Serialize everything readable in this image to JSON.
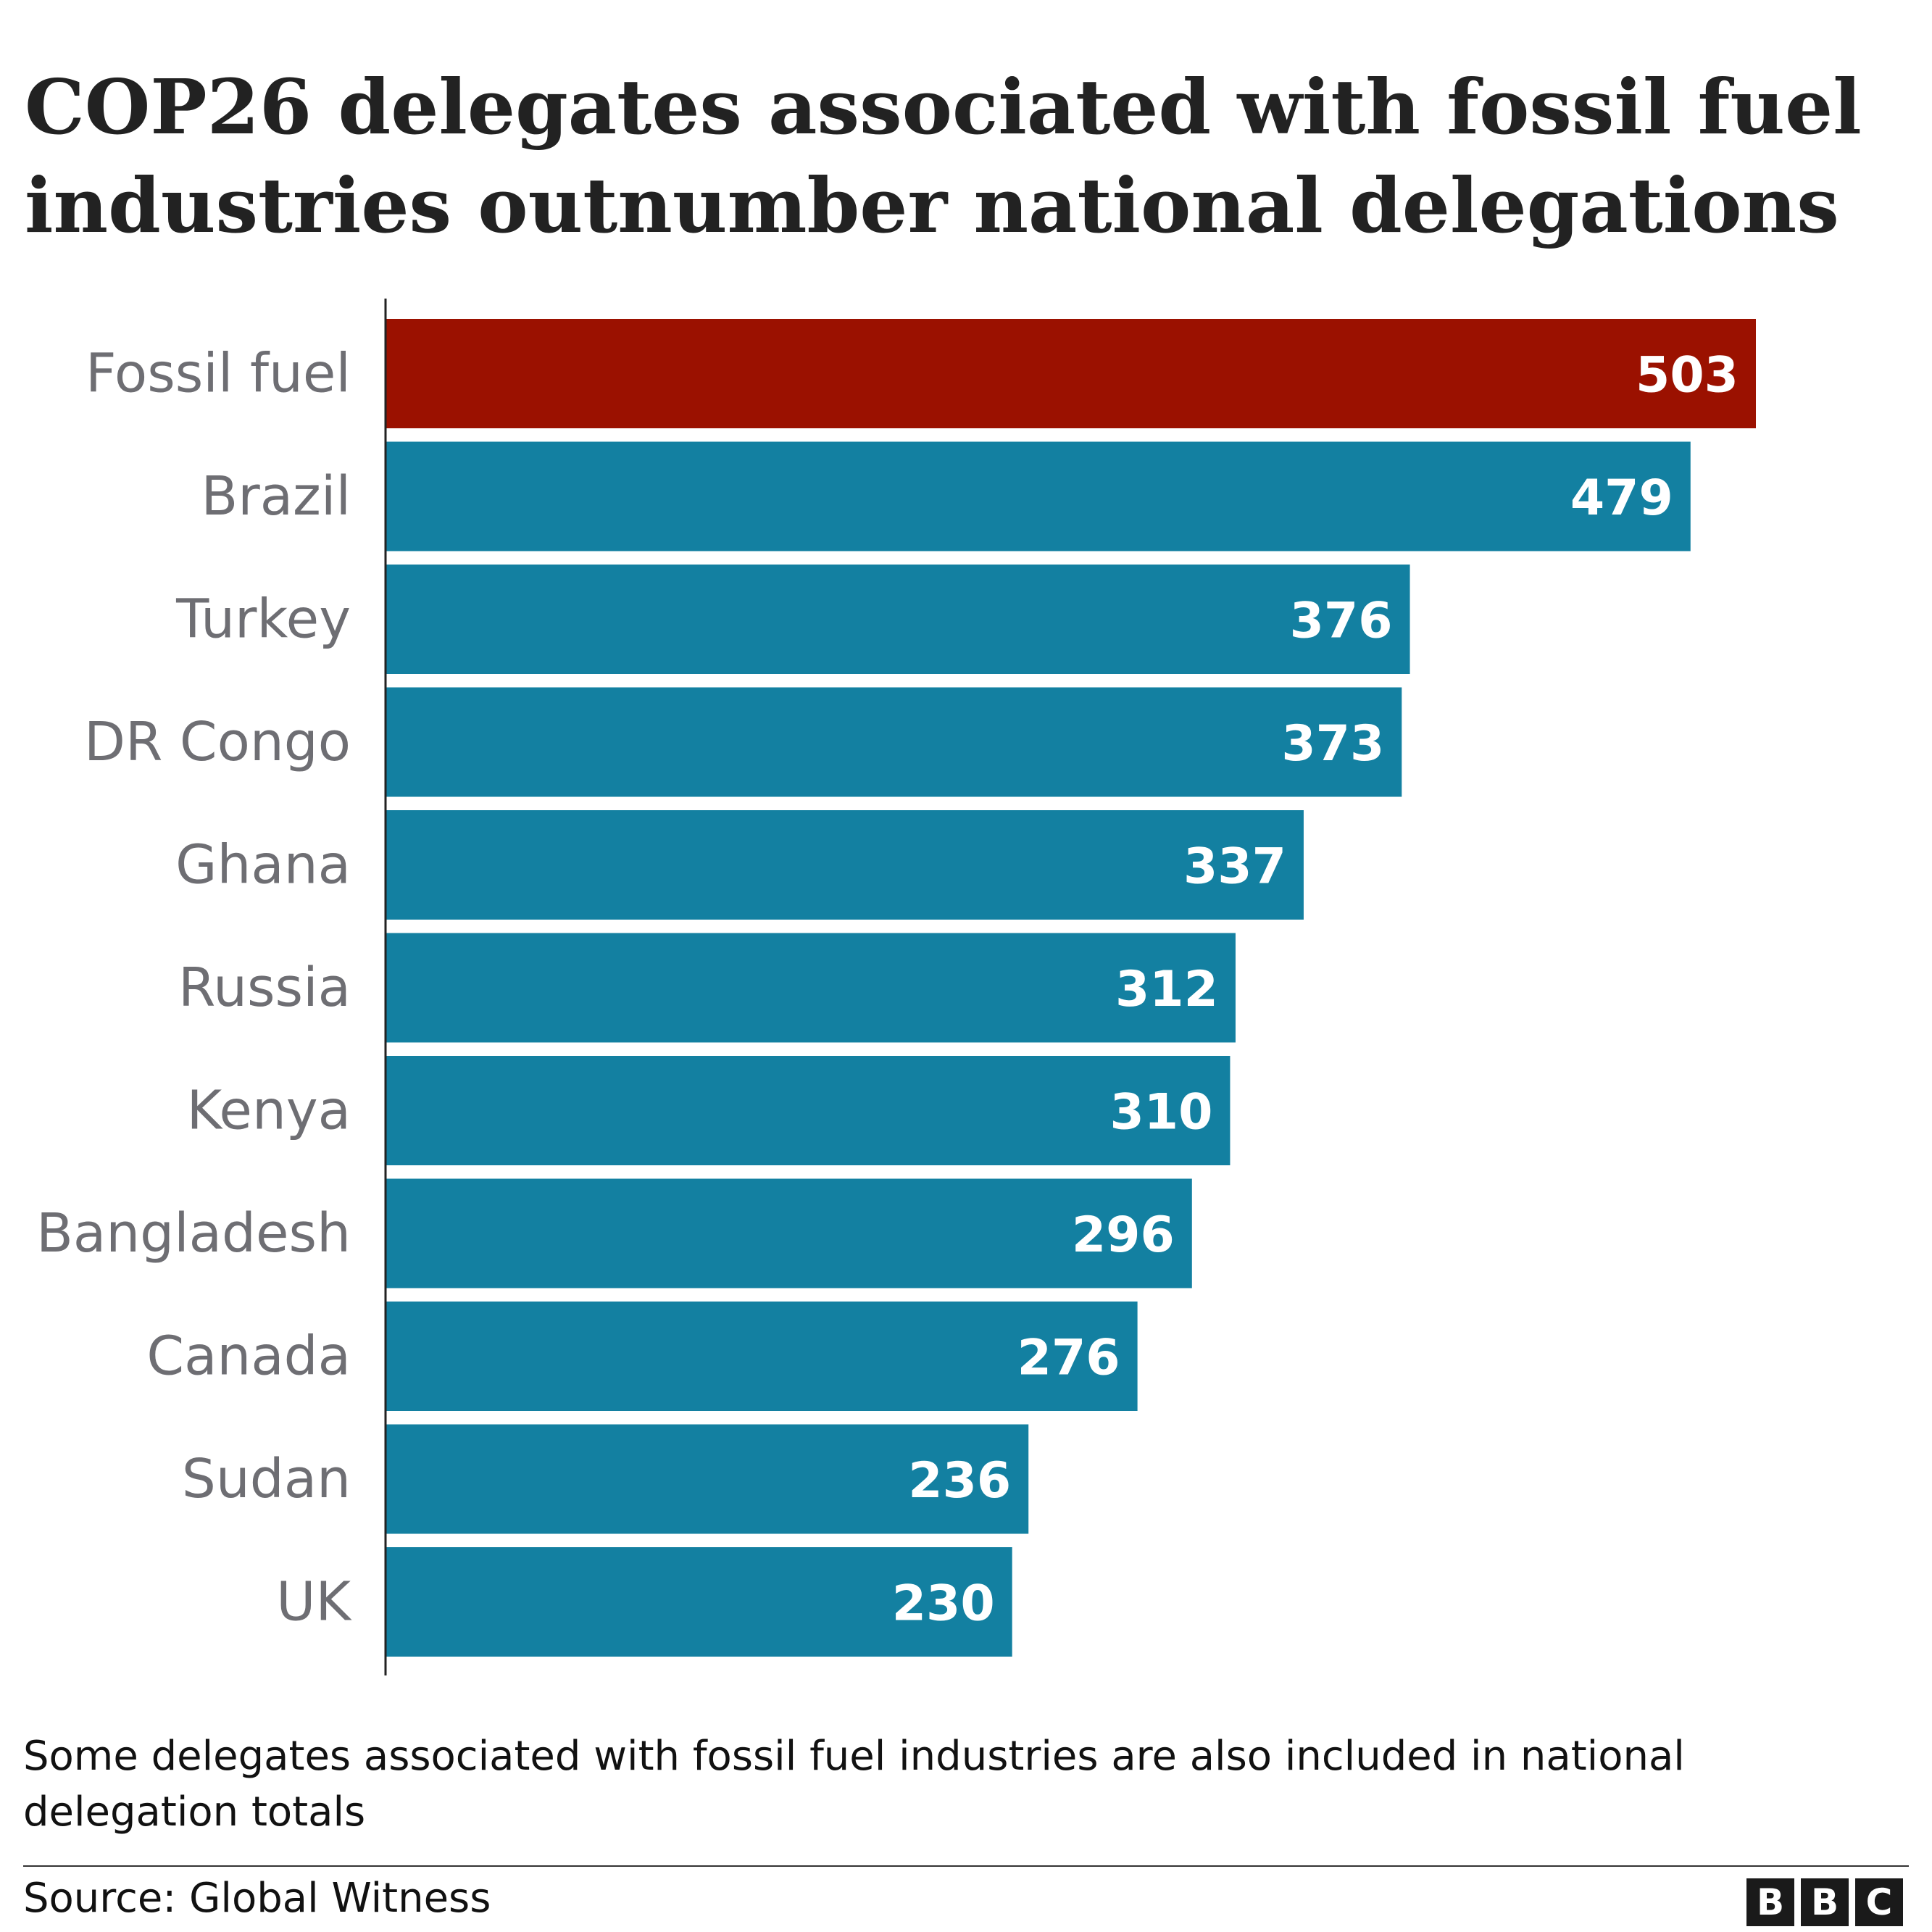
{
  "title": "COP26 delegates associated with fossil fuel industries outnumber national delegations",
  "footnote": "Some delegates associated with fossil fuel industries are also included in national delegation totals",
  "source": "Source: Global Witness",
  "logo": {
    "letters": [
      "B",
      "B",
      "C"
    ]
  },
  "colors": {
    "highlight": "#9B1100",
    "bar": "#1380A1",
    "axis": "#222222",
    "label": "#6E6E73",
    "value_text": "#ffffff"
  },
  "chart_data": {
    "type": "bar",
    "orientation": "horizontal",
    "title": "COP26 delegates associated with fossil fuel industries outnumber national delegations",
    "categories": [
      "Fossil fuel",
      "Brazil",
      "Turkey",
      "DR Congo",
      "Ghana",
      "Russia",
      "Kenya",
      "Bangladesh",
      "Canada",
      "Sudan",
      "UK"
    ],
    "values": [
      503,
      479,
      376,
      373,
      337,
      312,
      310,
      296,
      276,
      236,
      230
    ],
    "highlighted_category": "Fossil fuel",
    "data_labels": true,
    "xlim": [
      0,
      503
    ],
    "xlabel": "",
    "ylabel": "",
    "grid": false,
    "legend": "none"
  }
}
